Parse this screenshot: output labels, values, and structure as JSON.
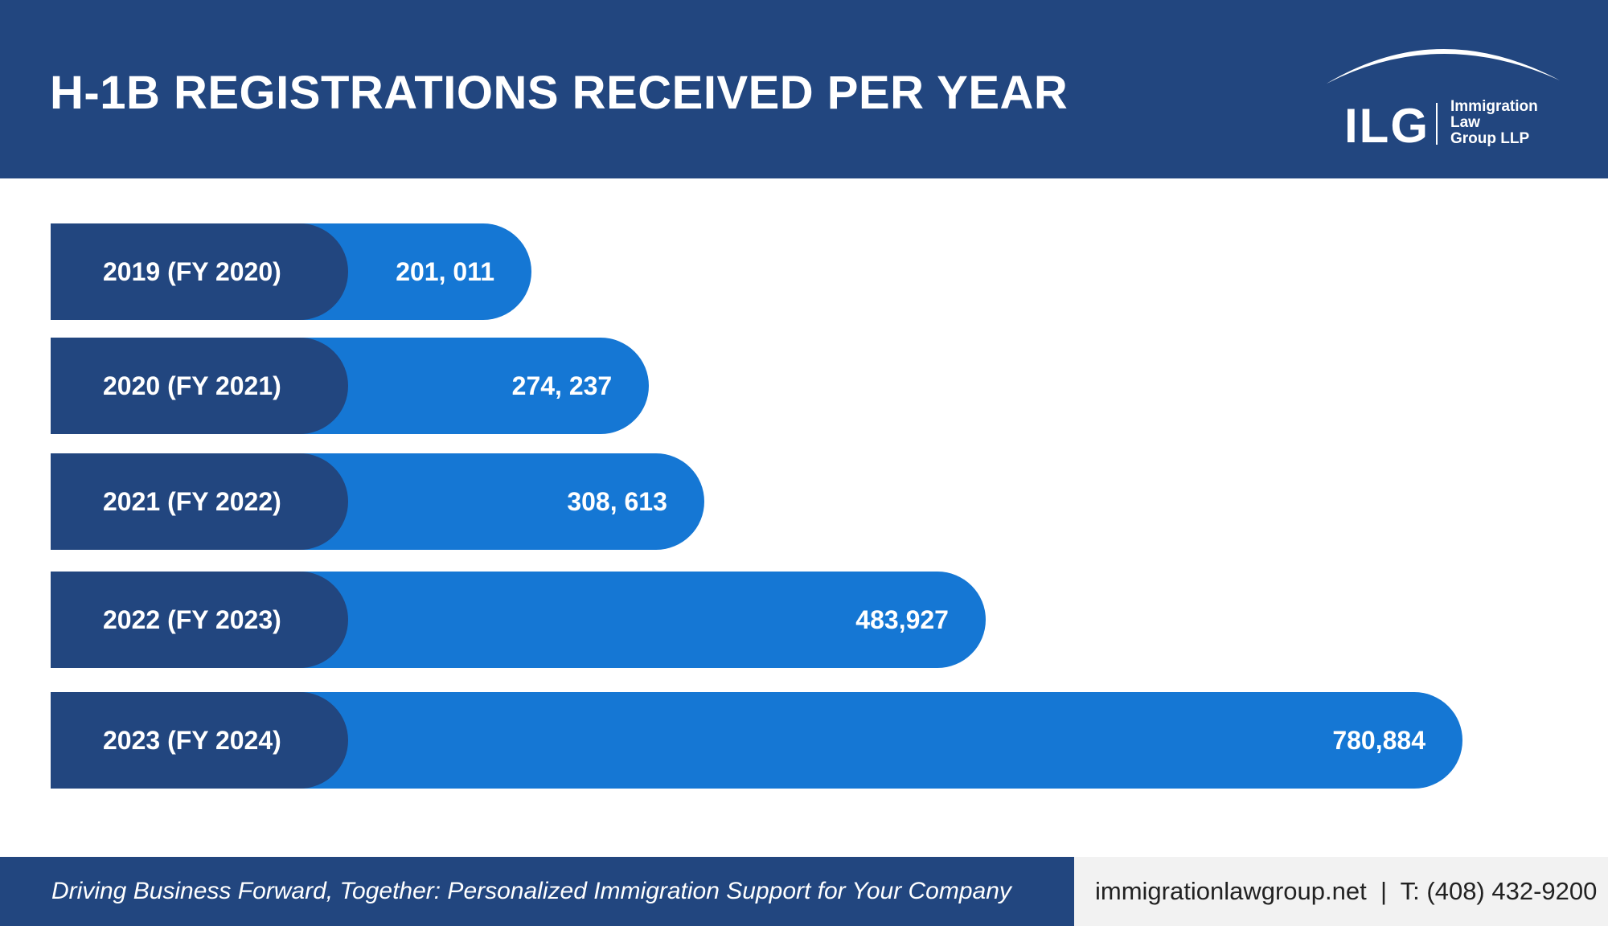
{
  "header": {
    "title": "H-1B REGISTRATIONS RECEIVED PER YEAR",
    "logo": {
      "abbr": "ILG",
      "name_lines": [
        "Immigration",
        "Law",
        "Group LLP"
      ]
    }
  },
  "colors": {
    "navy": "#22467F",
    "bar_blue": "#1577D4",
    "footer_gray": "#F2F2F2"
  },
  "chart_data": {
    "type": "bar",
    "orientation": "horizontal",
    "title": "H-1B REGISTRATIONS RECEIVED PER YEAR",
    "xlabel": "",
    "ylabel": "",
    "categories": [
      "2019 (FY 2020)",
      "2020 (FY 2021)",
      "2021 (FY 2022)",
      "2022 (FY 2023)",
      "2023 (FY 2024)"
    ],
    "values": [
      201011,
      274237,
      308613,
      483927,
      780884
    ],
    "value_labels": [
      "201, 011",
      "274, 237",
      "308, 613",
      "483,927",
      "780,884"
    ],
    "grid": false,
    "legend": "none"
  },
  "footer": {
    "tagline": "Driving Business Forward, Together: Personalized Immigration Support for Your Company",
    "contact": "immigrationlawgroup.net  |  T: (408) 432-9200"
  }
}
